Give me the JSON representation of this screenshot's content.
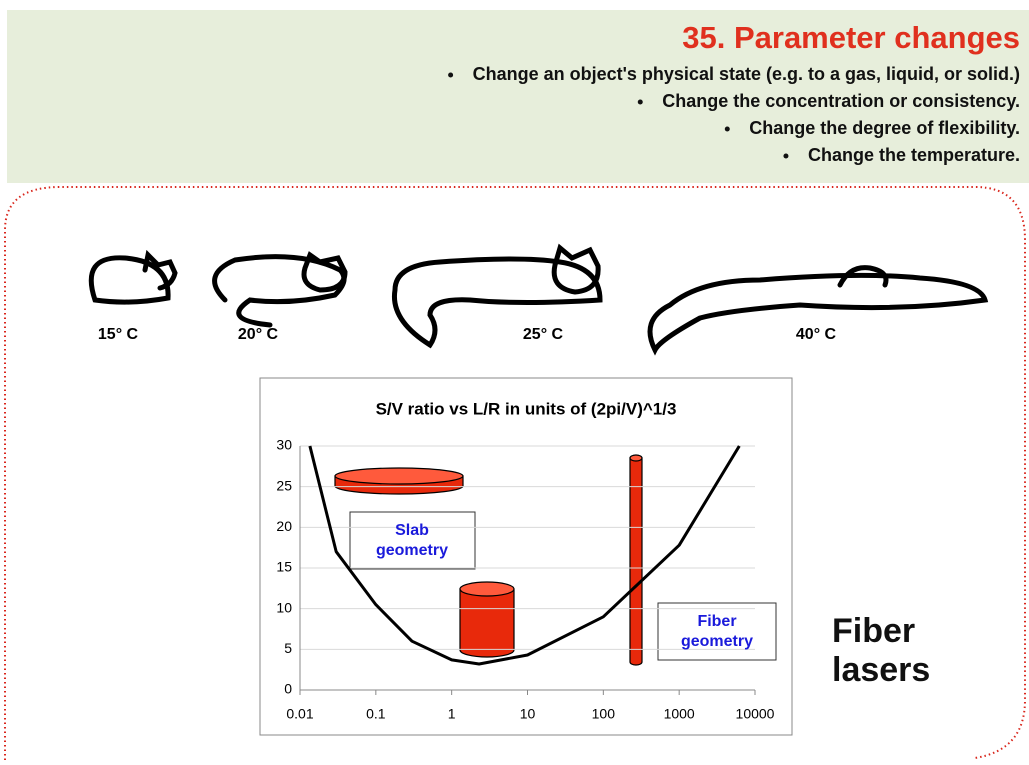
{
  "header": {
    "title": "35. Parameter changes",
    "bullets": [
      "Change an object's physical state (e.g. to a gas, liquid, or solid.)",
      "Change the concentration or consistency.",
      "Change the degree of flexibility.",
      "Change the temperature."
    ]
  },
  "cats": [
    "15° C",
    "20° C",
    "25° C",
    "40° C"
  ],
  "chart": {
    "type": "line",
    "title": "S/V ratio vs L/R in units of (2pi/V)^1/3",
    "x_log": true,
    "grid": true,
    "xlim": [
      0.01,
      10000
    ],
    "ylim": [
      0,
      30
    ],
    "xticks": [
      0.01,
      0.1,
      1,
      10,
      100,
      1000,
      10000
    ],
    "yticks": [
      0,
      5,
      10,
      15,
      20,
      25,
      30
    ],
    "series": [
      {
        "color": "#000000",
        "x": [
          0.0135,
          0.03,
          0.1,
          0.3,
          1,
          2.3,
          10,
          100,
          1000,
          6200
        ],
        "values": [
          30,
          17,
          10.5,
          6,
          3.7,
          3.2,
          4.3,
          9,
          17.8,
          30
        ]
      }
    ]
  },
  "annotations": {
    "slab": [
      "Slab",
      "geometry"
    ],
    "fiber": [
      "Fiber",
      "geometry"
    ]
  },
  "side_text": [
    "Fiber",
    "lasers"
  ]
}
